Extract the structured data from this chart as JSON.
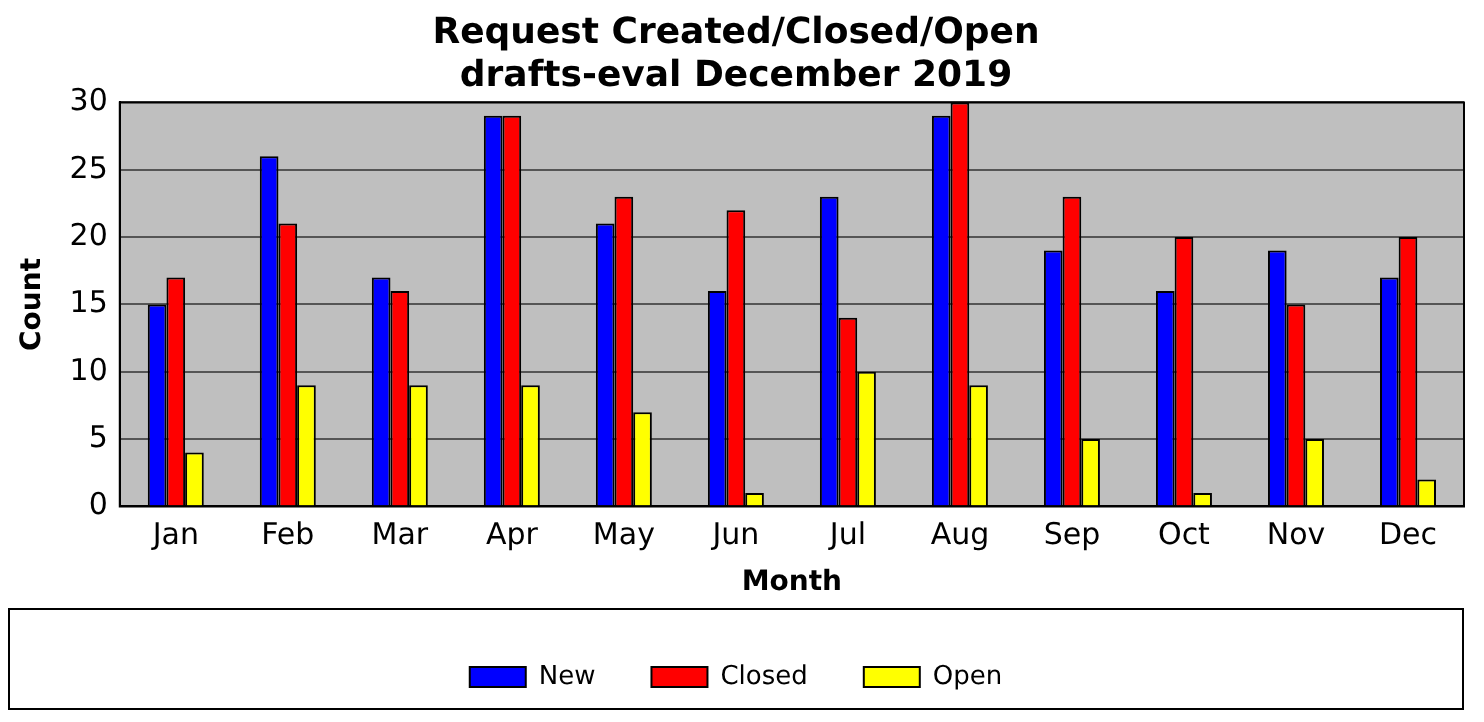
{
  "chart_data": {
    "type": "bar",
    "title": "Request Created/Closed/Open",
    "subtitle": "drafts-eval December 2019",
    "xlabel": "Month",
    "ylabel": "Count",
    "categories": [
      "Jan",
      "Feb",
      "Mar",
      "Apr",
      "May",
      "Jun",
      "Jul",
      "Aug",
      "Sep",
      "Oct",
      "Nov",
      "Dec"
    ],
    "series": [
      {
        "name": "New",
        "color": "#0000ff",
        "values": [
          15,
          26,
          17,
          29,
          21,
          16,
          23,
          29,
          19,
          16,
          19,
          17
        ]
      },
      {
        "name": "Closed",
        "color": "#ff0000",
        "values": [
          17,
          21,
          16,
          29,
          23,
          22,
          14,
          30,
          23,
          20,
          15,
          20
        ]
      },
      {
        "name": "Open",
        "color": "#ffff00",
        "values": [
          4,
          9,
          9,
          9,
          7,
          1,
          10,
          9,
          5,
          1,
          5,
          2
        ]
      }
    ],
    "ylim": [
      0,
      30
    ],
    "yticks": [
      0,
      5,
      10,
      15,
      20,
      25,
      30
    ],
    "grid": "y",
    "legend": "bottom"
  }
}
